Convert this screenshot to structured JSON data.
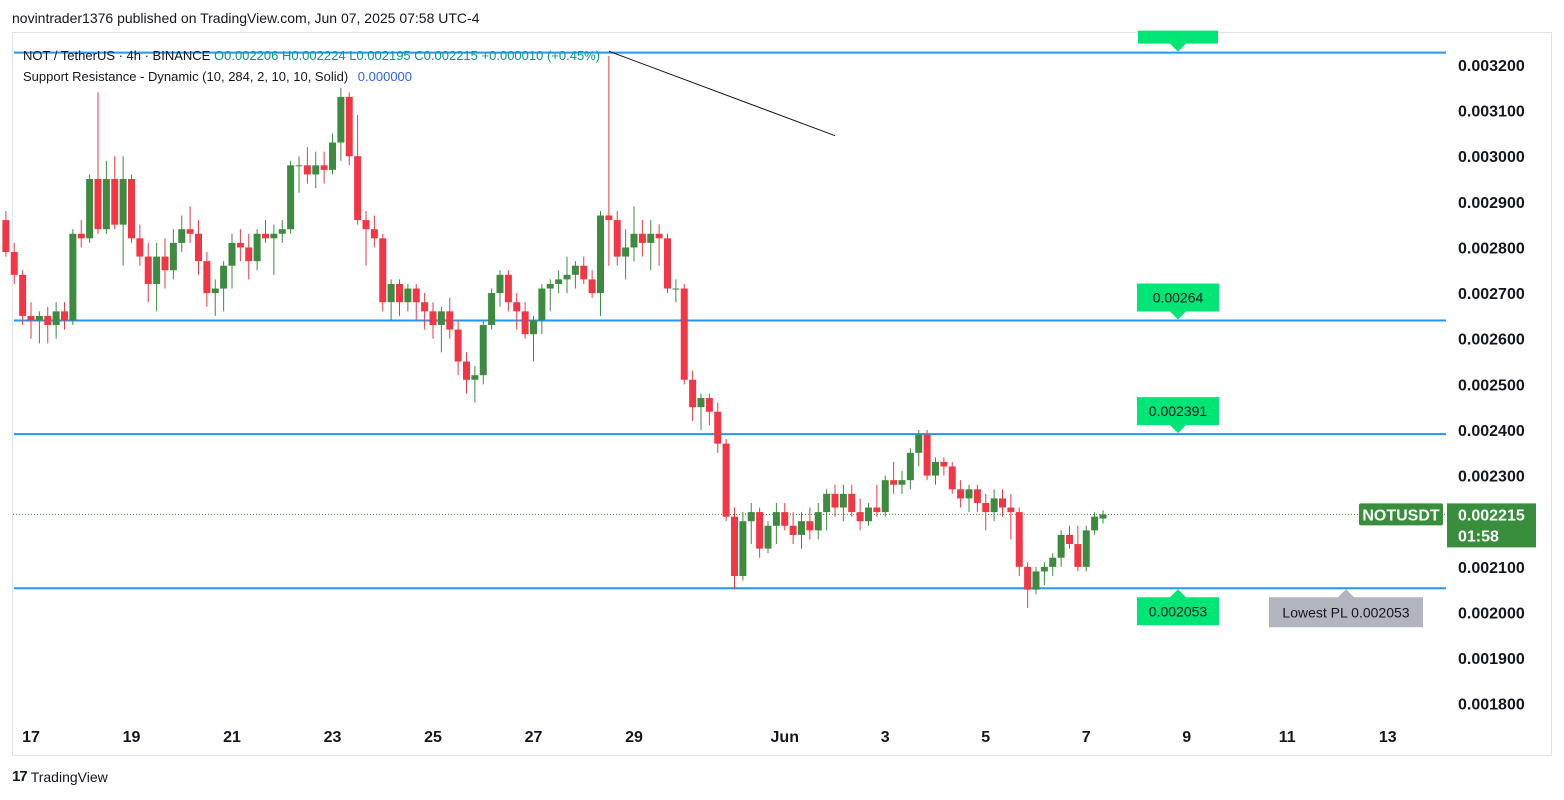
{
  "publisher_line": "novintrader1376 published on TradingView.com, Jun 07, 2025 07:58 UTC-4",
  "legend": {
    "symbol": "NOT / TetherUS · 4h · BINANCE",
    "open": "O0.002206",
    "high": "H0.002224",
    "low": "L0.002195",
    "close": "C0.002215",
    "change": "+0.000010 (+0.45%)",
    "indicator": "Support Resistance - Dynamic (10, 284, 2, 10, 10, Solid)",
    "indicator_value": "0.000000"
  },
  "footer": {
    "brand": "TradingView",
    "logo": "17"
  },
  "price_tag": {
    "symbol": "NOTUSDT",
    "price": "0.002215",
    "countdown": "01:58"
  },
  "colors": {
    "up": "#3d8b40",
    "down": "#f23645",
    "level_line": "#2196f3",
    "label_green": "#00e676",
    "tag_green": "#388e3c",
    "lowest_label": "#b2b5be"
  },
  "chart_data": {
    "type": "candlestick",
    "x_type": "date",
    "interval": "4h",
    "x_ticks": [
      "17",
      "19",
      "21",
      "23",
      "25",
      "27",
      "29",
      "Jun",
      "3",
      "5",
      "7",
      "9",
      "11",
      "13"
    ],
    "y_ticks": [
      "0.003200",
      "0.003100",
      "0.003000",
      "0.002900",
      "0.002800",
      "0.002700",
      "0.002600",
      "0.002500",
      "0.002400",
      "0.002300",
      "0.002200",
      "0.002100",
      "0.002000",
      "0.001900",
      "0.001800"
    ],
    "ylim": [
      0.00176,
      0.00327
    ],
    "candles": [
      [
        "2025-05-16 12:00",
        0.00286,
        0.00288,
        0.00278,
        0.00279
      ],
      [
        "2025-05-16 16:00",
        0.00279,
        0.00281,
        0.00272,
        0.00274
      ],
      [
        "2025-05-16 20:00",
        0.00274,
        0.00275,
        0.00263,
        0.00265
      ],
      [
        "2025-05-17 00:00",
        0.00265,
        0.00268,
        0.0026,
        0.00264
      ],
      [
        "2025-05-17 04:00",
        0.00264,
        0.00266,
        0.00259,
        0.00265
      ],
      [
        "2025-05-17 08:00",
        0.00265,
        0.00267,
        0.00259,
        0.00263
      ],
      [
        "2025-05-17 12:00",
        0.00263,
        0.00268,
        0.0026,
        0.00266
      ],
      [
        "2025-05-17 16:00",
        0.00266,
        0.00268,
        0.00262,
        0.00264
      ],
      [
        "2025-05-17 20:00",
        0.00264,
        0.00284,
        0.00263,
        0.00283
      ],
      [
        "2025-05-18 00:00",
        0.00283,
        0.00286,
        0.0028,
        0.00282
      ],
      [
        "2025-05-18 04:00",
        0.00282,
        0.00296,
        0.00281,
        0.00295
      ],
      [
        "2025-05-18 08:00",
        0.00295,
        0.00314,
        0.00283,
        0.00284
      ],
      [
        "2025-05-18 12:00",
        0.00284,
        0.00299,
        0.00283,
        0.00295
      ],
      [
        "2025-05-18 16:00",
        0.00295,
        0.003,
        0.00284,
        0.00285
      ],
      [
        "2025-05-18 20:00",
        0.00285,
        0.003,
        0.00276,
        0.00295
      ],
      [
        "2025-05-19 00:00",
        0.00295,
        0.00296,
        0.00281,
        0.00282
      ],
      [
        "2025-05-19 04:00",
        0.00282,
        0.00285,
        0.00276,
        0.00278
      ],
      [
        "2025-05-19 08:00",
        0.00278,
        0.00281,
        0.00268,
        0.00272
      ],
      [
        "2025-05-19 12:00",
        0.00272,
        0.00281,
        0.00266,
        0.00278
      ],
      [
        "2025-05-19 16:00",
        0.00278,
        0.00282,
        0.00271,
        0.00275
      ],
      [
        "2025-05-19 20:00",
        0.00275,
        0.00284,
        0.00273,
        0.00281
      ],
      [
        "2025-05-20 00:00",
        0.00281,
        0.00287,
        0.00279,
        0.00284
      ],
      [
        "2025-05-20 04:00",
        0.00284,
        0.00289,
        0.00281,
        0.00283
      ],
      [
        "2025-05-20 08:00",
        0.00283,
        0.00286,
        0.00274,
        0.00277
      ],
      [
        "2025-05-20 12:00",
        0.00277,
        0.00279,
        0.00267,
        0.0027
      ],
      [
        "2025-05-20 16:00",
        0.0027,
        0.00273,
        0.00265,
        0.00271
      ],
      [
        "2025-05-20 20:00",
        0.00271,
        0.00277,
        0.00266,
        0.00276
      ],
      [
        "2025-05-21 00:00",
        0.00276,
        0.00283,
        0.00271,
        0.00281
      ],
      [
        "2025-05-21 04:00",
        0.00281,
        0.00284,
        0.00277,
        0.0028
      ],
      [
        "2025-05-21 08:00",
        0.0028,
        0.00283,
        0.00273,
        0.00277
      ],
      [
        "2025-05-21 12:00",
        0.00277,
        0.00284,
        0.00275,
        0.00283
      ],
      [
        "2025-05-21 16:00",
        0.00283,
        0.00286,
        0.00281,
        0.00282
      ],
      [
        "2025-05-21 20:00",
        0.00282,
        0.00285,
        0.00274,
        0.00283
      ],
      [
        "2025-05-22 00:00",
        0.00283,
        0.00286,
        0.00281,
        0.00284
      ],
      [
        "2025-05-22 04:00",
        0.00284,
        0.00299,
        0.00283,
        0.00298
      ],
      [
        "2025-05-22 08:00",
        0.00298,
        0.003,
        0.00292,
        0.00298
      ],
      [
        "2025-05-22 12:00",
        0.00298,
        0.00302,
        0.00294,
        0.00296
      ],
      [
        "2025-05-22 16:00",
        0.00296,
        0.00301,
        0.00293,
        0.00298
      ],
      [
        "2025-05-22 20:00",
        0.00298,
        0.00301,
        0.00294,
        0.00297
      ],
      [
        "2025-05-23 00:00",
        0.00297,
        0.00305,
        0.00296,
        0.00303
      ],
      [
        "2025-05-23 04:00",
        0.00303,
        0.00315,
        0.00299,
        0.00313
      ],
      [
        "2025-05-23 08:00",
        0.00313,
        0.00314,
        0.00298,
        0.003
      ],
      [
        "2025-05-23 12:00",
        0.003,
        0.00309,
        0.00285,
        0.00286
      ],
      [
        "2025-05-23 16:00",
        0.00286,
        0.00288,
        0.00276,
        0.00284
      ],
      [
        "2025-05-23 20:00",
        0.00284,
        0.00287,
        0.0028,
        0.00282
      ],
      [
        "2025-05-24 00:00",
        0.00282,
        0.00283,
        0.00266,
        0.00268
      ],
      [
        "2025-05-24 04:00",
        0.00268,
        0.00273,
        0.00264,
        0.00272
      ],
      [
        "2025-05-24 08:00",
        0.00272,
        0.00273,
        0.00265,
        0.00268
      ],
      [
        "2025-05-24 12:00",
        0.00268,
        0.00272,
        0.00266,
        0.00271
      ],
      [
        "2025-05-24 16:00",
        0.00271,
        0.00272,
        0.00264,
        0.00268
      ],
      [
        "2025-05-24 20:00",
        0.00268,
        0.0027,
        0.00262,
        0.00266
      ],
      [
        "2025-05-25 00:00",
        0.00266,
        0.00268,
        0.0026,
        0.00263
      ],
      [
        "2025-05-25 04:00",
        0.00263,
        0.00267,
        0.00257,
        0.00266
      ],
      [
        "2025-05-25 08:00",
        0.00266,
        0.00269,
        0.0026,
        0.00262
      ],
      [
        "2025-05-25 12:00",
        0.00262,
        0.00264,
        0.00252,
        0.00255
      ],
      [
        "2025-05-25 16:00",
        0.00255,
        0.00257,
        0.00248,
        0.00251
      ],
      [
        "2025-05-25 20:00",
        0.00251,
        0.00254,
        0.00246,
        0.00252
      ],
      [
        "2025-05-26 00:00",
        0.00252,
        0.00264,
        0.0025,
        0.00263
      ],
      [
        "2025-05-26 04:00",
        0.00263,
        0.00271,
        0.00262,
        0.0027
      ],
      [
        "2025-05-26 08:00",
        0.0027,
        0.00275,
        0.00267,
        0.00274
      ],
      [
        "2025-05-26 12:00",
        0.00274,
        0.00275,
        0.00266,
        0.00268
      ],
      [
        "2025-05-26 16:00",
        0.00268,
        0.0027,
        0.00262,
        0.00266
      ],
      [
        "2025-05-26 20:00",
        0.00266,
        0.00268,
        0.0026,
        0.00261
      ],
      [
        "2025-05-27 00:00",
        0.00261,
        0.00265,
        0.00255,
        0.00264
      ],
      [
        "2025-05-27 04:00",
        0.00264,
        0.00272,
        0.00261,
        0.00271
      ],
      [
        "2025-05-27 08:00",
        0.00271,
        0.00273,
        0.00266,
        0.00272
      ],
      [
        "2025-05-27 12:00",
        0.00272,
        0.00275,
        0.0027,
        0.00273
      ],
      [
        "2025-05-27 16:00",
        0.00273,
        0.00278,
        0.0027,
        0.00274
      ],
      [
        "2025-05-27 20:00",
        0.00274,
        0.00277,
        0.00271,
        0.00276
      ],
      [
        "2025-05-28 00:00",
        0.00276,
        0.00278,
        0.00272,
        0.00273
      ],
      [
        "2025-05-28 04:00",
        0.00273,
        0.00275,
        0.00269,
        0.0027
      ],
      [
        "2025-05-28 08:00",
        0.0027,
        0.00288,
        0.00265,
        0.00287
      ],
      [
        "2025-05-28 12:00",
        0.00287,
        0.00322,
        0.00276,
        0.00286
      ],
      [
        "2025-05-28 16:00",
        0.00286,
        0.00288,
        0.00276,
        0.00278
      ],
      [
        "2025-05-28 20:00",
        0.00278,
        0.00284,
        0.00273,
        0.0028
      ],
      [
        "2025-05-29 00:00",
        0.0028,
        0.00289,
        0.00277,
        0.00283
      ],
      [
        "2025-05-29 04:00",
        0.00283,
        0.00286,
        0.00278,
        0.00281
      ],
      [
        "2025-05-29 08:00",
        0.00281,
        0.00286,
        0.00275,
        0.00283
      ],
      [
        "2025-05-29 12:00",
        0.00283,
        0.00285,
        0.00276,
        0.00282
      ],
      [
        "2025-05-29 16:00",
        0.00282,
        0.00283,
        0.0027,
        0.00271
      ],
      [
        "2025-05-29 20:00",
        0.00271,
        0.00273,
        0.00268,
        0.00271
      ],
      [
        "2025-05-30 00:00",
        0.00271,
        0.00272,
        0.0025,
        0.00251
      ],
      [
        "2025-05-30 04:00",
        0.00251,
        0.00253,
        0.00242,
        0.00245
      ],
      [
        "2025-05-30 08:00",
        0.00245,
        0.00248,
        0.0024,
        0.00247
      ],
      [
        "2025-05-30 12:00",
        0.00247,
        0.00248,
        0.00241,
        0.00244
      ],
      [
        "2025-05-30 16:00",
        0.00244,
        0.00246,
        0.00235,
        0.00237
      ],
      [
        "2025-05-30 20:00",
        0.00237,
        0.00238,
        0.0022,
        0.00221
      ],
      [
        "2025-05-31 00:00",
        0.00221,
        0.00223,
        0.00205,
        0.00208
      ],
      [
        "2025-05-31 04:00",
        0.00208,
        0.00222,
        0.00207,
        0.0022
      ],
      [
        "2025-05-31 08:00",
        0.0022,
        0.00224,
        0.00215,
        0.00222
      ],
      [
        "2025-05-31 12:00",
        0.00222,
        0.00223,
        0.00212,
        0.00214
      ],
      [
        "2025-05-31 16:00",
        0.00214,
        0.0022,
        0.00213,
        0.00219
      ],
      [
        "2025-05-31 20:00",
        0.00219,
        0.00224,
        0.00215,
        0.00222
      ],
      [
        "2025-06-01 00:00",
        0.00222,
        0.00224,
        0.00218,
        0.00219
      ],
      [
        "2025-06-01 04:00",
        0.00219,
        0.00222,
        0.00215,
        0.00217
      ],
      [
        "2025-06-01 08:00",
        0.00217,
        0.00222,
        0.00214,
        0.0022
      ],
      [
        "2025-06-01 12:00",
        0.0022,
        0.00223,
        0.00216,
        0.00218
      ],
      [
        "2025-06-01 16:00",
        0.00218,
        0.00224,
        0.00216,
        0.00222
      ],
      [
        "2025-06-01 20:00",
        0.00222,
        0.00227,
        0.00218,
        0.00226
      ],
      [
        "2025-06-02 00:00",
        0.00226,
        0.00228,
        0.00221,
        0.00223
      ],
      [
        "2025-06-02 04:00",
        0.00223,
        0.00228,
        0.0022,
        0.00226
      ],
      [
        "2025-06-02 08:00",
        0.00226,
        0.00228,
        0.00221,
        0.00222
      ],
      [
        "2025-06-02 12:00",
        0.00222,
        0.00225,
        0.00218,
        0.0022
      ],
      [
        "2025-06-02 16:00",
        0.0022,
        0.00224,
        0.00219,
        0.00223
      ],
      [
        "2025-06-02 20:00",
        0.00223,
        0.00228,
        0.00221,
        0.00222
      ],
      [
        "2025-06-03 00:00",
        0.00222,
        0.0023,
        0.00221,
        0.00229
      ],
      [
        "2025-06-03 04:00",
        0.00229,
        0.00233,
        0.00226,
        0.00228
      ],
      [
        "2025-06-03 08:00",
        0.00228,
        0.00231,
        0.00226,
        0.00229
      ],
      [
        "2025-06-03 12:00",
        0.00229,
        0.00236,
        0.00227,
        0.00235
      ],
      [
        "2025-06-03 16:00",
        0.00235,
        0.0024,
        0.00232,
        0.00239
      ],
      [
        "2025-06-03 20:00",
        0.00239,
        0.0024,
        0.00229,
        0.0023
      ],
      [
        "2025-06-04 00:00",
        0.0023,
        0.00234,
        0.00228,
        0.00233
      ],
      [
        "2025-06-04 04:00",
        0.00233,
        0.00234,
        0.0023,
        0.00232
      ],
      [
        "2025-06-04 08:00",
        0.00232,
        0.00233,
        0.00226,
        0.00227
      ],
      [
        "2025-06-04 12:00",
        0.00227,
        0.00229,
        0.00223,
        0.00225
      ],
      [
        "2025-06-04 16:00",
        0.00225,
        0.00228,
        0.00222,
        0.00227
      ],
      [
        "2025-06-04 20:00",
        0.00227,
        0.00228,
        0.00222,
        0.00224
      ],
      [
        "2025-06-05 00:00",
        0.00224,
        0.00226,
        0.00218,
        0.00222
      ],
      [
        "2025-06-05 04:00",
        0.00222,
        0.00227,
        0.0022,
        0.00225
      ],
      [
        "2025-06-05 08:00",
        0.00225,
        0.00227,
        0.00221,
        0.00223
      ],
      [
        "2025-06-05 12:00",
        0.00223,
        0.00226,
        0.00216,
        0.00222
      ],
      [
        "2025-06-05 16:00",
        0.00222,
        0.00223,
        0.00208,
        0.0021
      ],
      [
        "2025-06-05 20:00",
        0.0021,
        0.00211,
        0.00201,
        0.00205
      ],
      [
        "2025-06-06 00:00",
        0.00205,
        0.0021,
        0.00204,
        0.00209
      ],
      [
        "2025-06-06 04:00",
        0.00209,
        0.00211,
        0.00206,
        0.0021
      ],
      [
        "2025-06-06 08:00",
        0.0021,
        0.00213,
        0.00208,
        0.00212
      ],
      [
        "2025-06-06 12:00",
        0.00212,
        0.00218,
        0.0021,
        0.00217
      ],
      [
        "2025-06-06 16:00",
        0.00217,
        0.00219,
        0.00214,
        0.00215
      ],
      [
        "2025-06-06 20:00",
        0.00215,
        0.00219,
        0.00209,
        0.0021
      ],
      [
        "2025-06-07 00:00",
        0.0021,
        0.00219,
        0.00209,
        0.00218
      ],
      [
        "2025-06-07 04:00",
        0.00218,
        0.00222,
        0.00217,
        0.00221
      ],
      [
        "2025-06-07 08:00",
        0.002206,
        0.002224,
        0.002195,
        0.002215
      ]
    ],
    "levels": [
      {
        "price": 0.003227
      },
      {
        "price": 0.00264,
        "label": "0.00264"
      },
      {
        "price": 0.002391,
        "label": "0.002391"
      },
      {
        "price": 0.002053,
        "label": "0.002053"
      }
    ],
    "lowest_label": "Lowest PL 0.002053",
    "last_price": 0.002215,
    "trendline": {
      "from": [
        "2025-05-28 12:00",
        0.00323
      ],
      "to": [
        "2025-06-02 00:00",
        0.003045
      ]
    }
  }
}
